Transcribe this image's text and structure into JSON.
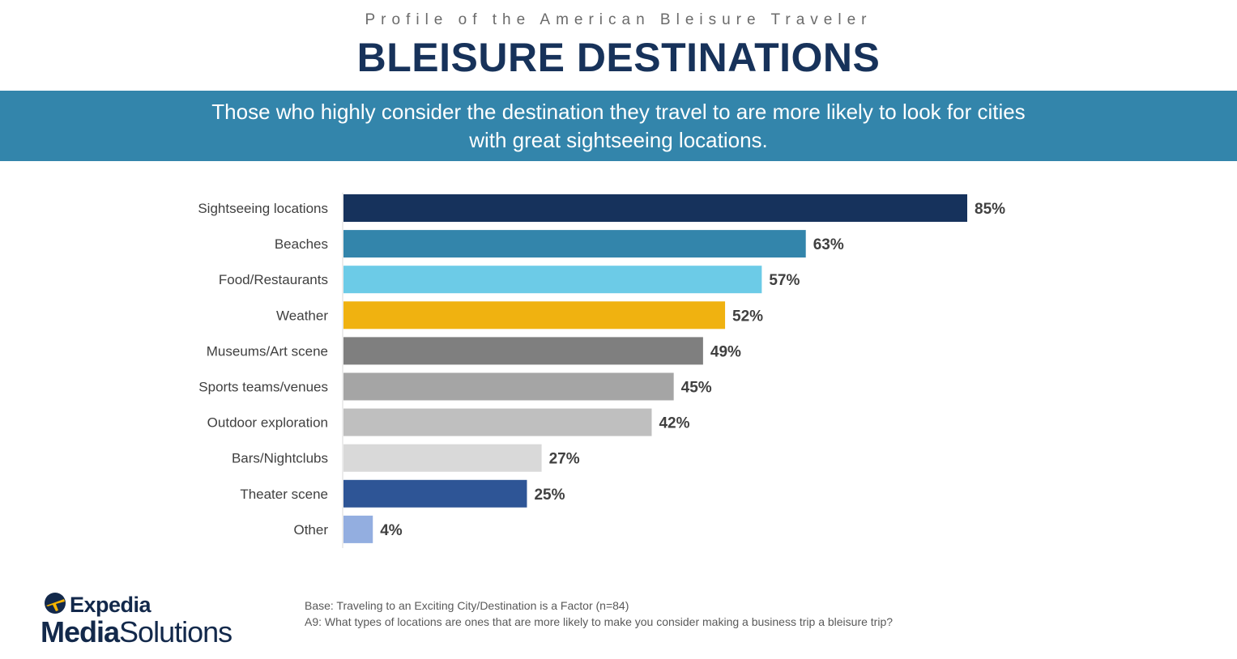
{
  "header": {
    "kicker": "Profile of the American Bleisure Traveler",
    "title": "BLEISURE DESTINATIONS"
  },
  "banner": {
    "line1": "Those who highly consider the destination they travel to are more likely to look for cities",
    "line2": "with great sightseeing locations."
  },
  "chart_data": {
    "type": "bar",
    "orientation": "horizontal",
    "categories": [
      "Sightseeing locations",
      "Beaches",
      "Food/Restaurants",
      "Weather",
      "Museums/Art scene",
      "Sports teams/venues",
      "Outdoor exploration",
      "Bars/Nightclubs",
      "Theater scene",
      "Other"
    ],
    "values": [
      85,
      63,
      57,
      52,
      49,
      45,
      42,
      27,
      25,
      4
    ],
    "value_labels": [
      "85%",
      "63%",
      "57%",
      "52%",
      "49%",
      "45%",
      "42%",
      "27%",
      "25%",
      "4%"
    ],
    "bar_colors": [
      "#16325c",
      "#3385ab",
      "#6ccbe7",
      "#f0b210",
      "#7f7f7f",
      "#a5a5a5",
      "#bfbfbf",
      "#d9d9d9",
      "#2e5596",
      "#93aee0"
    ],
    "xlim": [
      0,
      100
    ],
    "title": "",
    "xlabel": "",
    "ylabel": "",
    "grid": false,
    "legend": "none"
  },
  "footnote": {
    "base": "Base: Traveling to an Exciting City/Destination is a Factor (n=84)",
    "question": "A9: What types of locations are ones that are more likely to make you consider making a business trip a bleisure trip?"
  },
  "logo": {
    "brand": "Expedia",
    "media": "Media",
    "solutions": "Solutions"
  }
}
